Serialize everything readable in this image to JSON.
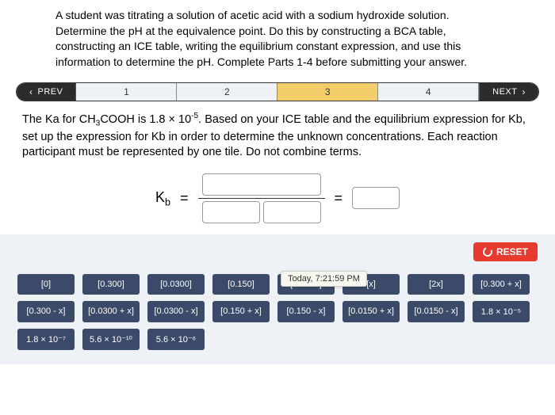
{
  "instructions": "A student was titrating a solution of acetic acid with a sodium hydroxide solution. Determine the pH at the equivalence point. Do this by constructing a BCA table, constructing an ICE table, writing the equilibrium constant expression, and use this information to determine the pH. Complete Parts 1-4 before submitting your answer.",
  "stepper": {
    "prev": "PREV",
    "next": "NEXT",
    "steps": [
      "1",
      "2",
      "3",
      "4"
    ],
    "active_index": 2
  },
  "question": {
    "prefix": "The Ka for CH",
    "sub1": "3",
    "mid1": "COOH is 1.8 × 10",
    "sup1": "-5",
    "rest": ". Based on your ICE table and the equilibrium expression for Kb, set up the expression for Kb in order to determine the unknown concentrations. Each reaction participant must be represented by one tile. Do not combine terms."
  },
  "expr": {
    "k_label": "K",
    "k_sub": "b",
    "eq1": "=",
    "eq2": "="
  },
  "reset_label": "RESET",
  "tiles": [
    "[0]",
    "[0.300]",
    "[0.0300]",
    "[0.150]",
    "[0.0150]",
    "[x]",
    "[2x]",
    "[0.300 + x]",
    "[0.300 - x]",
    "[0.0300 + x]",
    "[0.0300 - x]",
    "[0.150 + x]",
    "[0.150 - x]",
    "[0.0150 + x]",
    "[0.0150 - x]",
    "1.8 × 10⁻⁵",
    "1.8 × 10⁻⁷",
    "5.6 × 10⁻¹⁰",
    "5.6 × 10⁻⁶"
  ],
  "tooltip": "Today, 7:21:59 PM",
  "colors": {
    "tray_bg": "#eef1f5",
    "tile_bg": "#3a4a68",
    "reset_bg": "#e63a2e",
    "active_step_bg": "#f3cd6a"
  }
}
